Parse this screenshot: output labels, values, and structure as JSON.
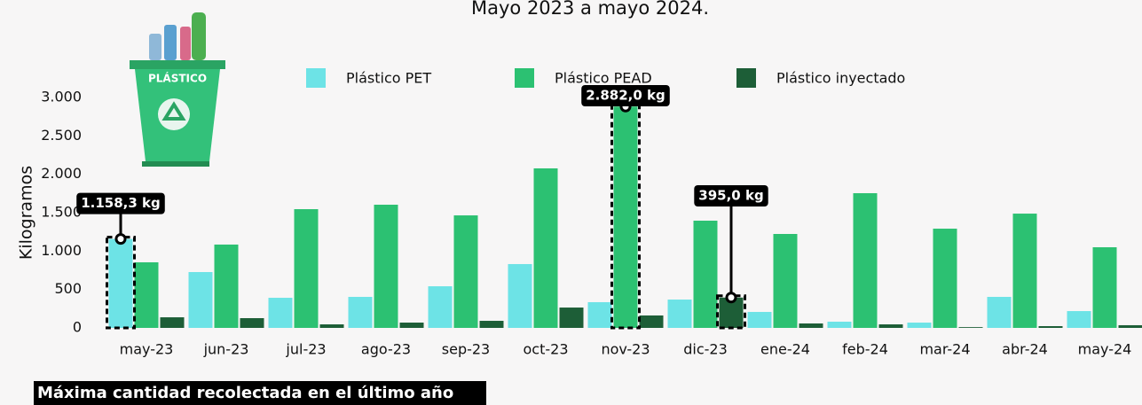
{
  "chart_data": {
    "type": "bar",
    "subtitle": "Mayo 2023 a mayo 2024.",
    "y_label": "Kilogramos",
    "icon_label": "PLÁSTICO",
    "footer_label": "Máxima cantidad recolectada en el último año",
    "categories": [
      "may-23",
      "jun-23",
      "jul-23",
      "ago-23",
      "sep-23",
      "oct-23",
      "nov-23",
      "dic-23",
      "ene-24",
      "feb-24",
      "mar-24",
      "abr-24",
      "may-24"
    ],
    "series": [
      {
        "name": "Plástico PET",
        "color": "#6de3e6",
        "values": [
          1158.3,
          727,
          392,
          404,
          542,
          831,
          335,
          369,
          208,
          81,
          69,
          404,
          219
        ],
        "value_labels": [
          "1.158,3 kg",
          null,
          null,
          null,
          null,
          null,
          null,
          null,
          null,
          null,
          null,
          null,
          null
        ]
      },
      {
        "name": "Plástico PEAD",
        "color": "#2cc172",
        "values": [
          854,
          1085,
          1546,
          1604,
          1465,
          2077,
          2882,
          1396,
          1223,
          1754,
          1292,
          1488,
          1050
        ],
        "value_labels": [
          null,
          null,
          null,
          null,
          null,
          null,
          "2.882,0 kg",
          null,
          null,
          null,
          null,
          null,
          null
        ]
      },
      {
        "name": "Plástico inyectado",
        "color": "#1d5e37",
        "values": [
          138,
          127,
          46,
          69,
          92,
          265,
          162,
          395,
          58,
          46,
          10,
          23,
          35
        ],
        "value_labels": [
          null,
          null,
          null,
          null,
          null,
          null,
          null,
          "395,0 kg",
          null,
          null,
          null,
          null,
          null
        ]
      }
    ],
    "ylim": [
      0,
      3000
    ],
    "yticks": [
      0,
      {
        "value": 500,
        "label": "500"
      },
      {
        "value": 1000,
        "label": "1.000"
      },
      {
        "value": 1500,
        "label": "1.500"
      },
      {
        "value": 2000,
        "label": "2.000"
      },
      {
        "value": 2500,
        "label": "2.500"
      },
      {
        "value": 3000,
        "label": "3.000"
      }
    ]
  }
}
